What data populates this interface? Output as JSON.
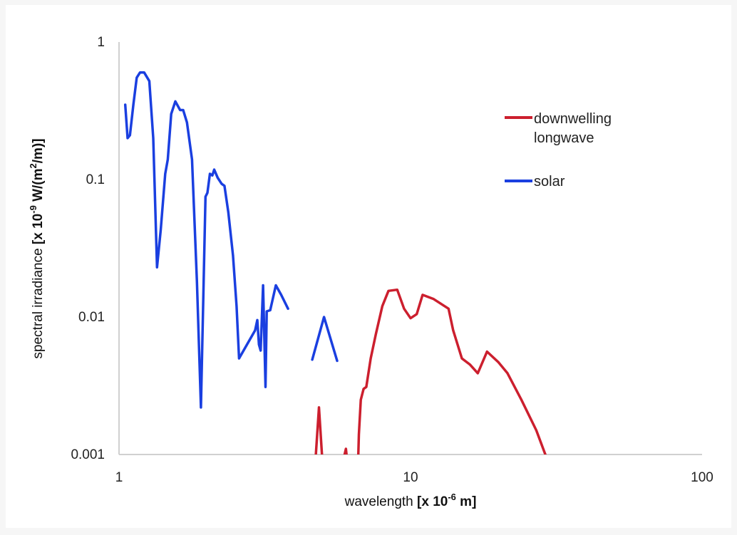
{
  "chart_data": {
    "type": "line",
    "title": "",
    "xlabel_prefix": "wavelength ",
    "xlabel_unit": "[x 10",
    "xlabel_unit_exp": "-6",
    "xlabel_unit_suffix": " m]",
    "ylabel_prefix": "spectral irradiance ",
    "ylabel_unit": "[x 10",
    "ylabel_unit_exp": "-9",
    "ylabel_unit_mid": " W/(m",
    "ylabel_unit_exp2": "2",
    "ylabel_unit_suffix": "/m)]",
    "xscale": "log",
    "yscale": "log",
    "xlim": [
      1,
      100
    ],
    "ylim": [
      0.001,
      1
    ],
    "x_ticks": [
      {
        "value": 1,
        "label": "1"
      },
      {
        "value": 10,
        "label": "10"
      },
      {
        "value": 100,
        "label": "100"
      }
    ],
    "y_ticks": [
      {
        "value": 1,
        "label": "1"
      },
      {
        "value": 0.1,
        "label": "0.1"
      },
      {
        "value": 0.01,
        "label": "0.01"
      },
      {
        "value": 0.001,
        "label": "0.001"
      }
    ],
    "grid": false,
    "legend_position": "right",
    "series": [
      {
        "name_lines": [
          "downwelling",
          "longwave"
        ],
        "color": "#cc1f2e",
        "segments": [
          [
            [
              4.7,
              0.0008
            ],
            [
              4.85,
              0.0022
            ],
            [
              5.0,
              0.0008
            ]
          ],
          [
            [
              5.8,
              0.0008
            ],
            [
              6.0,
              0.0011
            ],
            [
              6.1,
              0.0008
            ]
          ],
          [
            [
              6.6,
              0.0008
            ],
            [
              6.65,
              0.0014
            ],
            [
              6.75,
              0.0025
            ],
            [
              6.9,
              0.003
            ],
            [
              7.05,
              0.0031
            ],
            [
              7.3,
              0.005
            ],
            [
              7.6,
              0.0075
            ],
            [
              8.0,
              0.012
            ],
            [
              8.4,
              0.0155
            ],
            [
              9.0,
              0.0158
            ],
            [
              9.5,
              0.0115
            ],
            [
              10.0,
              0.0098
            ],
            [
              10.5,
              0.0105
            ],
            [
              11.0,
              0.0145
            ],
            [
              12.0,
              0.0135
            ],
            [
              13.5,
              0.0115
            ],
            [
              14.0,
              0.008
            ],
            [
              15.0,
              0.005
            ],
            [
              16.0,
              0.0045
            ],
            [
              17.0,
              0.0039
            ],
            [
              18.3,
              0.0056
            ],
            [
              20.0,
              0.0047
            ],
            [
              21.5,
              0.0039
            ],
            [
              24.0,
              0.0025
            ],
            [
              27.0,
              0.0015
            ],
            [
              29.0,
              0.001
            ],
            [
              30.0,
              0.0008
            ]
          ]
        ]
      },
      {
        "name_lines": [
          "solar"
        ],
        "color": "#1a3fe0",
        "segments": [
          [
            [
              1.05,
              0.35
            ],
            [
              1.07,
              0.2
            ],
            [
              1.09,
              0.21
            ],
            [
              1.12,
              0.35
            ],
            [
              1.15,
              0.55
            ],
            [
              1.18,
              0.6
            ],
            [
              1.22,
              0.6
            ],
            [
              1.27,
              0.52
            ],
            [
              1.31,
              0.2
            ],
            [
              1.35,
              0.023
            ],
            [
              1.39,
              0.043
            ],
            [
              1.44,
              0.11
            ],
            [
              1.47,
              0.14
            ],
            [
              1.51,
              0.3
            ],
            [
              1.56,
              0.37
            ],
            [
              1.62,
              0.32
            ],
            [
              1.66,
              0.32
            ],
            [
              1.71,
              0.26
            ],
            [
              1.78,
              0.14
            ],
            [
              1.85,
              0.018
            ],
            [
              1.91,
              0.0022
            ],
            [
              1.98,
              0.075
            ],
            [
              2.01,
              0.08
            ],
            [
              2.05,
              0.11
            ],
            [
              2.09,
              0.107
            ],
            [
              2.12,
              0.118
            ],
            [
              2.18,
              0.103
            ],
            [
              2.25,
              0.093
            ],
            [
              2.3,
              0.09
            ],
            [
              2.37,
              0.058
            ],
            [
              2.46,
              0.028
            ],
            [
              2.53,
              0.012
            ],
            [
              2.58,
              0.005
            ],
            [
              2.93,
              0.008
            ],
            [
              2.98,
              0.0095
            ],
            [
              3.02,
              0.0063
            ],
            [
              3.06,
              0.0057
            ],
            [
              3.12,
              0.017
            ],
            [
              3.18,
              0.0031
            ],
            [
              3.21,
              0.011
            ],
            [
              3.3,
              0.0112
            ],
            [
              3.45,
              0.017
            ],
            [
              3.6,
              0.0145
            ],
            [
              3.8,
              0.0115
            ]
          ],
          [
            [
              4.6,
              0.0049
            ],
            [
              5.05,
              0.01
            ],
            [
              5.6,
              0.0048
            ]
          ]
        ]
      }
    ]
  }
}
